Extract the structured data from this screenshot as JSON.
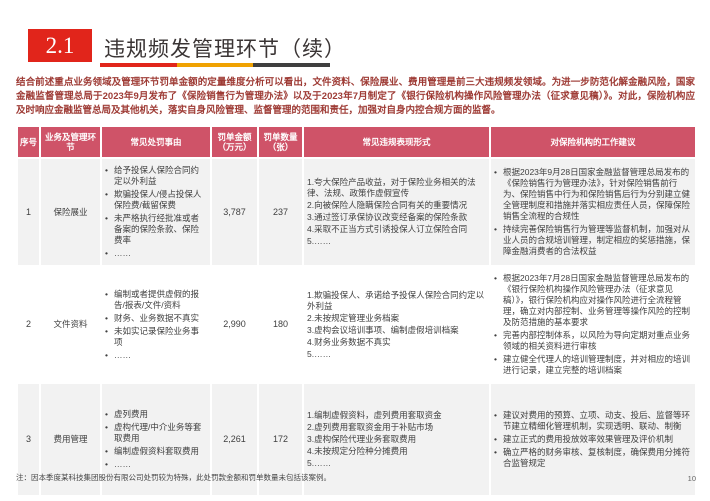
{
  "slide": {
    "section_number": "2.1",
    "title": "违规频发管理环节（续）",
    "intro": "结合前述重点业务领域及管理环节罚单金额的定量维度分析可以看出，文件资料、保险展业、费用管理是前三大违规频发领域。为进一步防范化解金融风险，国家金融监督管理总局于2023年9月发布了《保险销售行为管理办法》以及于2023年7月制定了《银行保险机构操作风险管理办法（征求意见稿）》。对此，保险机构应及时响应金融监管总局及其他机关，落实自身风险管理、监督管理的范围和责任，加强对自身内控合规方面的监督。",
    "footnote": "注：因本季度某科技集团股份有限公司处罚较为特殊，此处罚款金额和罚单数量未包括该案例。",
    "page_number": "10",
    "colors": {
      "accent_red": "#e1251b",
      "accent_orange": "#f0a202",
      "accent_dark": "#3f3f3f",
      "table_header_bg": "#cf5368",
      "row_alt_bg": "#f2f2f2",
      "intro_text": "#9e3b35"
    }
  },
  "table": {
    "headers": [
      "序号",
      "业务及管理环节",
      "常见处罚事由",
      "罚单金额（万元）",
      "罚单数量（张）",
      "常见违规表现形式",
      "对保险机构的工作建议"
    ],
    "rows": [
      {
        "no": "1",
        "category": "保险展业",
        "reasons": [
          "给予投保人保险合同约定以外利益",
          "欺骗投保人/侵占投保人保险费/截留保费",
          "未严格执行经批准或者备案的保险条款、保险费率",
          "……"
        ],
        "amount": "3,787",
        "count": "237",
        "violations": [
          "1.夸大保险产品收益，对于保险业务相关的法律、法规、政策作虚假宣传",
          "2.向被保险人隐瞒保险合同有关的重要情况",
          "3.通过签订承保协议改变经备案的保险条款",
          "4.采取不正当方式引诱投保人订立保险合同",
          "5.……"
        ],
        "suggestions": [
          "根据2023年9月28日国家金融监督管理总局发布的《保险销售行为管理办法》，针对保险销售前行为、保险销售中行为和保险销售后行为分别建立健全管理制度和措施并落实相应责任人员，保障保险销售全流程的合规性",
          "持续完善保险销售行为管理等监督机制，加强对从业人员的合规培训管理，制定相应的奖惩措施，保障金融消费者的合法权益"
        ]
      },
      {
        "no": "2",
        "category": "文件资料",
        "reasons": [
          "编制或者提供虚假的报告/报表/文件/资料",
          "财务、业务数据不真实",
          "未如实记录保险业务事项",
          "……"
        ],
        "amount": "2,990",
        "count": "180",
        "violations": [
          "1.欺骗投保人、承诺给予投保人保险合同约定以外利益",
          "2.未按规定管理业务档案",
          "3.虚构会议培训事项、编制虚假培训档案",
          "4.财务业务数据不真实",
          "5.……"
        ],
        "suggestions": [
          "根据2023年7月28日国家金融监督管理总局发布的《银行保险机构操作风险管理办法（征求意见稿）》，银行保险机构应对操作风险进行全流程管理，确立对内部控制、业务管理等操作风险的控制及防范措施的基本要求",
          "完善内部控制体系，以风险为导向定期对重点业务领域的相关资料进行审核",
          "建立健全代理人的培训管理制度，并对相应的培训进行记录，建立完整的培训档案"
        ]
      },
      {
        "no": "3",
        "category": "费用管理",
        "reasons": [
          "虚列费用",
          "虚构代理/中介业务等套取费用",
          "编制虚假资料套取费用",
          "……"
        ],
        "amount": "2,261",
        "count": "172",
        "violations": [
          "1.编制虚假资料，虚列费用套取资金",
          "2.虚列费用套取资金用于补贴市场",
          "3.虚构保险代理业务套取费用",
          "4.未按规定分险种分摊费用",
          "5.……"
        ],
        "suggestions": [
          "建议对费用的预算、立项、动支、投后、监督等环节建立精细化管理机制，实现透明、联动、制衡",
          "建立正式的费用投放效率效果管理及评价机制",
          "确立严格的财务审核、复核制度，确保费用分摊符合监管规定"
        ]
      }
    ]
  }
}
